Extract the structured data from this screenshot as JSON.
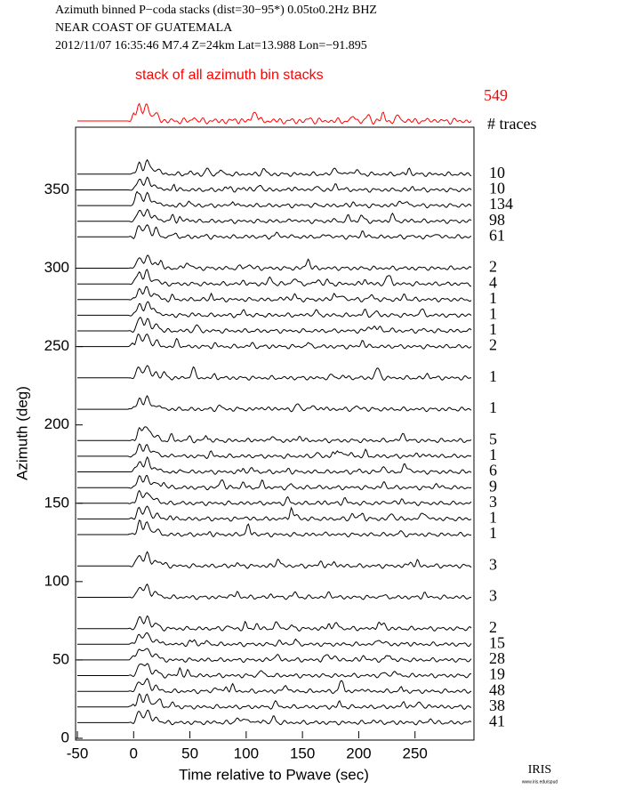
{
  "chart_data": {
    "type": "trace-stack",
    "title_lines": [
      "Azimuth binned P−coda stacks (dist=30−95*)  0.05to0.2Hz  BHZ",
      "NEAR COAST OF GUATEMALA",
      "2012/11/07  16:35:46  M7.4  Z=24km Lat=13.988 Lon=−91.895"
    ],
    "stack_label": "stack of all azimuth bin stacks",
    "stack_count": 549,
    "count_header": "# traces",
    "xlabel": "Time relative to Pwave (sec)",
    "ylabel": "Azimuth (deg)",
    "xlim": [
      -50,
      300
    ],
    "ylim": [
      0,
      390
    ],
    "xticks": [
      -50,
      0,
      50,
      100,
      150,
      200,
      250
    ],
    "yticks": [
      0,
      50,
      100,
      150,
      200,
      250,
      300,
      350
    ],
    "trace_color": "#000000",
    "stack_color": "#ff0000",
    "azimuths": [
      360,
      350,
      340,
      330,
      320,
      300,
      290,
      280,
      270,
      260,
      250,
      230,
      210,
      190,
      180,
      170,
      160,
      150,
      140,
      130,
      110,
      90,
      70,
      60,
      50,
      40,
      30,
      20,
      10
    ],
    "counts": [
      10,
      10,
      134,
      98,
      61,
      2,
      4,
      1,
      1,
      1,
      2,
      1,
      1,
      5,
      1,
      6,
      9,
      3,
      1,
      1,
      3,
      3,
      2,
      15,
      28,
      19,
      48,
      38,
      41
    ],
    "logo": "IRIS",
    "logo_url": "www.iris.edu/spud"
  }
}
